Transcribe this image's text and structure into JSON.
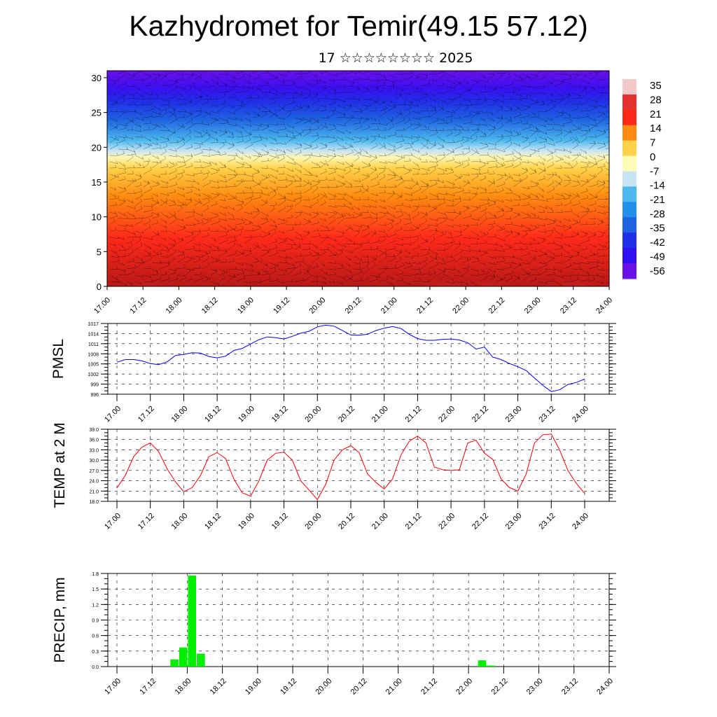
{
  "page": {
    "title": "Kazhydromet for Temir(49.15 57.12)",
    "subtitle": "17 ☆☆☆☆☆☆☆☆ 2025"
  },
  "chart_data": [
    {
      "type": "heatmap",
      "name": "cross-section",
      "ylim": [
        0,
        31
      ],
      "yticks": [
        0,
        5,
        10,
        15,
        20,
        25,
        30
      ],
      "xticks": [
        "17.00",
        "17.12",
        "18.00",
        "18.12",
        "19.00",
        "19.12",
        "20.00",
        "20.12",
        "21.00",
        "21.12",
        "22.00",
        "22.12",
        "23.00",
        "23.12",
        "24.00"
      ],
      "colorbar": {
        "labels": [
          "35",
          "28",
          "21",
          "14",
          "7",
          "0",
          "-7",
          "-14",
          "-21",
          "-28",
          "-35",
          "-42",
          "-49",
          "-56"
        ],
        "colors": [
          "#f3c8c8",
          "#e53030",
          "#ff2a1a",
          "#ff8c10",
          "#ffd24a",
          "#fffcb8",
          "#c8e4f2",
          "#4db8ee",
          "#2290e8",
          "#1f62e0",
          "#2030e8",
          "#3010f0",
          "#6a10e8"
        ]
      },
      "wind_barbs": true
    },
    {
      "type": "line",
      "name": "PMSL",
      "ylabel": "PMSL",
      "ylim": [
        996,
        1017
      ],
      "yticks": [
        996,
        999,
        1002,
        1005,
        1008,
        1011,
        1014,
        1017
      ],
      "xticks": [
        "17.00",
        "17.12",
        "18.00",
        "18.12",
        "19.00",
        "19.12",
        "20.00",
        "20.12",
        "21.00",
        "21.12",
        "22.00",
        "22.12",
        "23.00",
        "23.12",
        "24.00"
      ],
      "x": [
        0,
        1,
        2,
        3,
        4,
        5,
        6,
        7,
        8,
        9,
        10,
        11,
        12,
        13,
        14,
        15,
        16,
        17,
        18,
        19,
        20,
        21,
        22,
        23,
        24,
        25,
        26,
        27,
        28,
        29,
        30,
        31,
        32,
        33,
        34,
        35,
        36,
        37,
        38,
        39,
        40,
        41,
        42,
        43,
        44,
        45,
        46,
        47,
        48,
        49,
        50,
        51,
        52,
        53,
        54,
        55,
        56
      ],
      "series": [
        {
          "color": "#0000ff",
          "values": [
            1005.5,
            1006.3,
            1006.3,
            1005.9,
            1005.1,
            1004.8,
            1005.6,
            1007.5,
            1007.8,
            1008.3,
            1008.2,
            1007.2,
            1006.8,
            1007.3,
            1009.0,
            1009.6,
            1010.9,
            1012.2,
            1013.0,
            1012.8,
            1012.4,
            1013.2,
            1014.1,
            1014.7,
            1016.0,
            1016.5,
            1016.2,
            1014.9,
            1013.6,
            1013.5,
            1013.8,
            1014.9,
            1015.6,
            1016.1,
            1015.5,
            1013.8,
            1012.5,
            1012.0,
            1012.0,
            1012.3,
            1012.4,
            1012.1,
            1011.3,
            1009.4,
            1010.0,
            1007.0,
            1006.3,
            1005.1,
            1004.2,
            1003.0,
            1000.8,
            998.6,
            996.8,
            997.3,
            998.9,
            999.5,
            1000.5
          ]
        }
      ]
    },
    {
      "type": "line",
      "name": "TEMP at 2 M",
      "ylabel": "TEMP at 2 M",
      "ylim": [
        18,
        39
      ],
      "yticks": [
        "18.0",
        "21.0",
        "24.0",
        "27.0",
        "30.0",
        "33.0",
        "36.0",
        "39.0"
      ],
      "xticks": [
        "17.00",
        "17.12",
        "18.00",
        "18.12",
        "19.00",
        "19.12",
        "20.00",
        "20.12",
        "21.00",
        "21.12",
        "22.00",
        "22.12",
        "23.00",
        "23.12",
        "24.00"
      ],
      "x": [
        0,
        1,
        2,
        3,
        4,
        5,
        6,
        7,
        8,
        9,
        10,
        11,
        12,
        13,
        14,
        15,
        16,
        17,
        18,
        19,
        20,
        21,
        22,
        23,
        24,
        25,
        26,
        27,
        28,
        29,
        30,
        31,
        32,
        33,
        34,
        35,
        36,
        37,
        38,
        39,
        40,
        41,
        42,
        43,
        44,
        45,
        46,
        47,
        48,
        49,
        50,
        51,
        52,
        53,
        54,
        55,
        56
      ],
      "series": [
        {
          "color": "#ff0000",
          "values": [
            21.9,
            25.5,
            31.0,
            33.8,
            35.0,
            32.5,
            27.5,
            23.7,
            20.8,
            22.0,
            25.5,
            31.0,
            32.2,
            30.5,
            24.5,
            20.5,
            19.5,
            24.0,
            30.0,
            32.0,
            32.3,
            30.0,
            24.0,
            21.3,
            18.5,
            23.0,
            30.0,
            33.0,
            34.2,
            32.2,
            26.0,
            23.5,
            21.6,
            24.5,
            31.5,
            35.5,
            37.0,
            35.0,
            28.0,
            27.2,
            27.0,
            27.2,
            35.0,
            35.8,
            32.0,
            30.2,
            24.5,
            22.0,
            21.0,
            26.0,
            35.0,
            37.4,
            37.6,
            33.0,
            27.0,
            23.2,
            20.3
          ]
        }
      ]
    },
    {
      "type": "bar",
      "name": "PRECIP, mm",
      "ylabel": "PRECIP, mm",
      "ylim": [
        0,
        1.8
      ],
      "yticks": [
        "0.0",
        "0.3",
        "0.6",
        "0.9",
        "1.2",
        "1.5",
        "1.8"
      ],
      "xticks": [
        "17.00",
        "17.12",
        "18.00",
        "18.12",
        "19.00",
        "19.12",
        "20.00",
        "20.12",
        "21.00",
        "21.12",
        "22.00",
        "22.12",
        "23.00",
        "23.12",
        "24.00"
      ],
      "bars": [
        {
          "x": 6,
          "value": 0.14
        },
        {
          "x": 7,
          "value": 0.37
        },
        {
          "x": 8,
          "value": 1.76
        },
        {
          "x": 9,
          "value": 0.25
        },
        {
          "x": 41,
          "value": 0.12
        },
        {
          "x": 42,
          "value": 0.02
        }
      ],
      "bar_color": "#00ee00"
    }
  ]
}
